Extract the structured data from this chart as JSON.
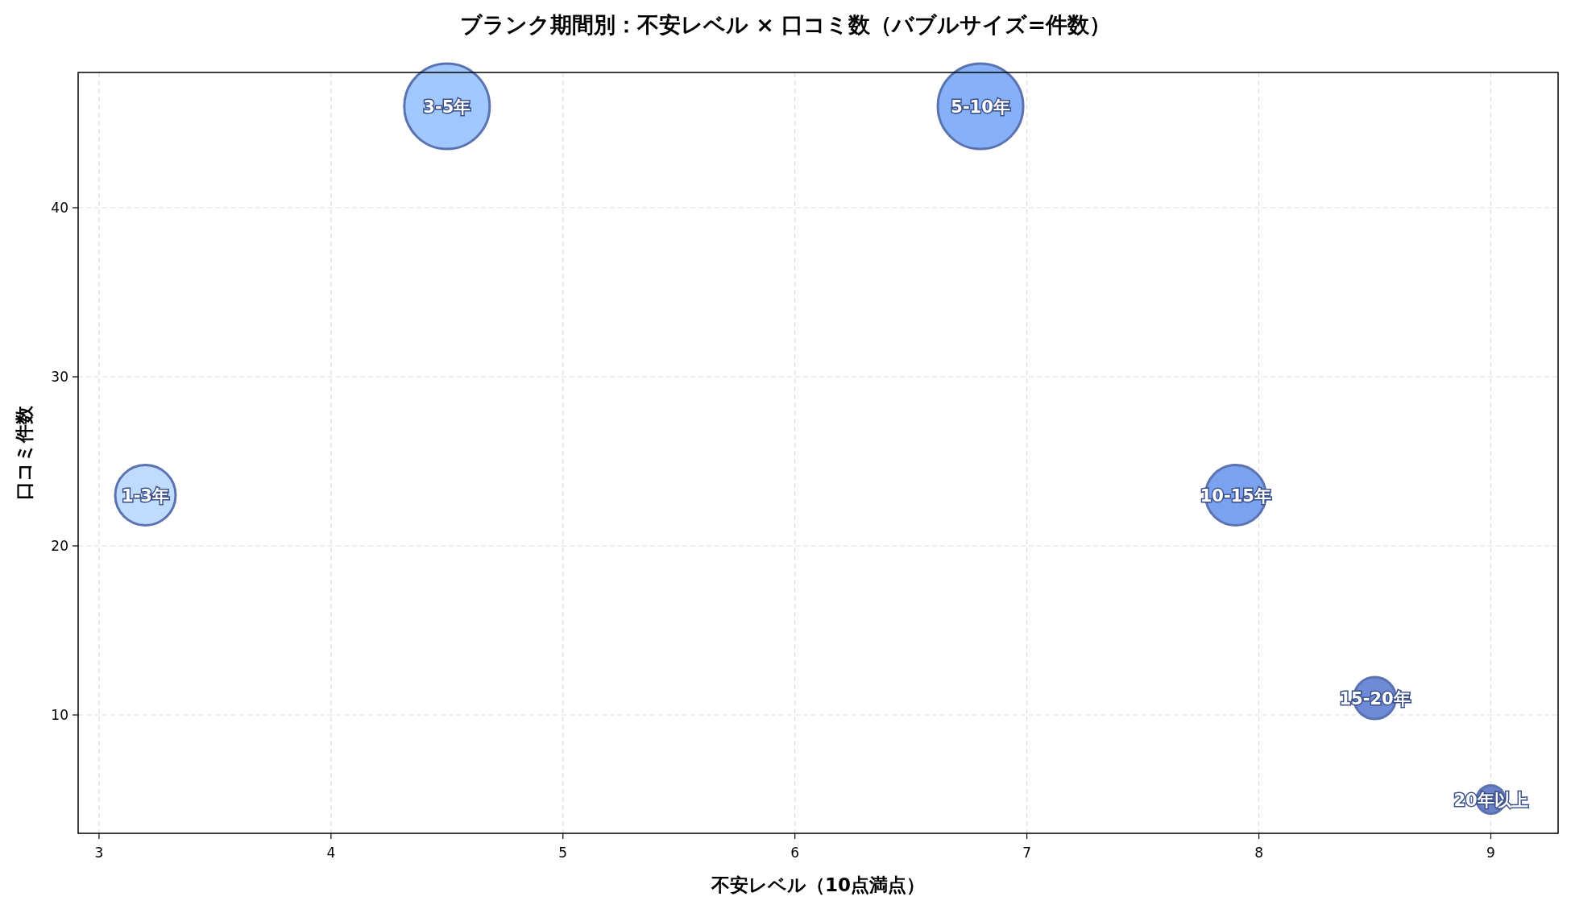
{
  "chart_data": {
    "type": "bubble",
    "title": "ブランク期間別：不安レベル × 口コミ数（バブルサイズ=件数）",
    "xlabel": "不安レベル（10点満点）",
    "ylabel": "口コミ件数",
    "x": [
      3.2,
      4.5,
      6.8,
      7.9,
      8.5,
      9.0
    ],
    "values": [
      23,
      46,
      46,
      23,
      11,
      5
    ],
    "sizes": [
      0.5,
      1,
      1,
      0.5,
      0.24,
      0.11
    ],
    "colors": [
      "#bfdbfe",
      "#a0c8fd",
      "#86b0f7",
      "#7ba2ee",
      "#6f8bd8",
      "#6a80c8"
    ],
    "annotations": [
      {
        "text": "1-3年",
        "x": 3.2,
        "y": 23
      },
      {
        "text": "3-5年",
        "x": 4.5,
        "y": 46
      },
      {
        "text": "5-10年",
        "x": 6.8,
        "y": 46
      },
      {
        "text": "10-15年",
        "x": 7.9,
        "y": 23
      },
      {
        "text": "15-20年",
        "x": 8.5,
        "y": 11
      },
      {
        "text": "20年以上",
        "x": 9.0,
        "y": 5
      }
    ],
    "xlim": [
      2.91,
      9.29
    ],
    "ylim": [
      3.0,
      48.0
    ],
    "xticks": [
      3,
      4,
      5,
      6,
      7,
      8,
      9
    ],
    "yticks": [
      10,
      20,
      30,
      40
    ],
    "grid": true
  }
}
